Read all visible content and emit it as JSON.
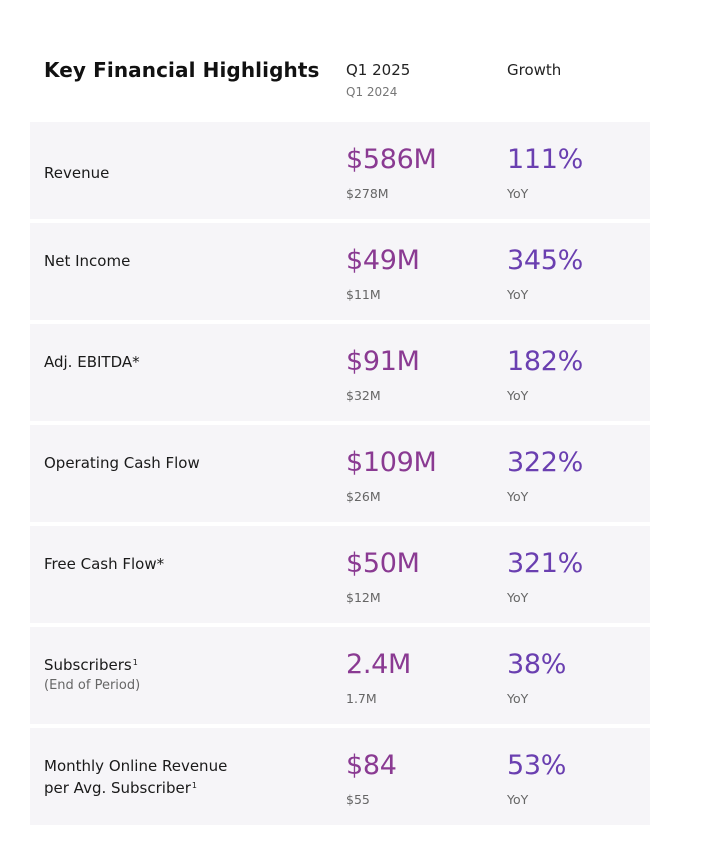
{
  "header": {
    "title": "Key Financial Highlights",
    "period": "Q1 2025",
    "prior_period": "Q1 2024",
    "growth": "Growth"
  },
  "rows": [
    {
      "label": "Revenue",
      "value": "$586M",
      "prior": "$278M",
      "growth": "111%",
      "growth_label": "YoY"
    },
    {
      "label": "Net Income",
      "value": "$49M",
      "prior": "$11M",
      "growth": "345%",
      "growth_label": "YoY"
    },
    {
      "label": "Adj. EBITDA*",
      "value": "$91M",
      "prior": "$32M",
      "growth": "182%",
      "growth_label": "YoY"
    },
    {
      "label": "Operating Cash Flow",
      "value": "$109M",
      "prior": "$26M",
      "growth": "322%",
      "growth_label": "YoY"
    },
    {
      "label": "Free Cash Flow*",
      "value": "$50M",
      "prior": "$12M",
      "growth": "321%",
      "growth_label": "YoY"
    },
    {
      "label": "Subscribers",
      "footnote": "1",
      "sublabel": "(End of Period)",
      "value": "2.4M",
      "prior": "1.7M",
      "growth": "38%",
      "growth_label": "YoY"
    },
    {
      "label_line1": "Monthly Online Revenue",
      "label_line2": "per Avg. Subscriber",
      "footnote": "1",
      "value": "$84",
      "prior": "$55",
      "growth": "53%",
      "growth_label": "YoY"
    }
  ],
  "colors": {
    "value": "#8a3a92",
    "growth": "#6a3fb0",
    "row_bg": "#f6f5f8"
  }
}
